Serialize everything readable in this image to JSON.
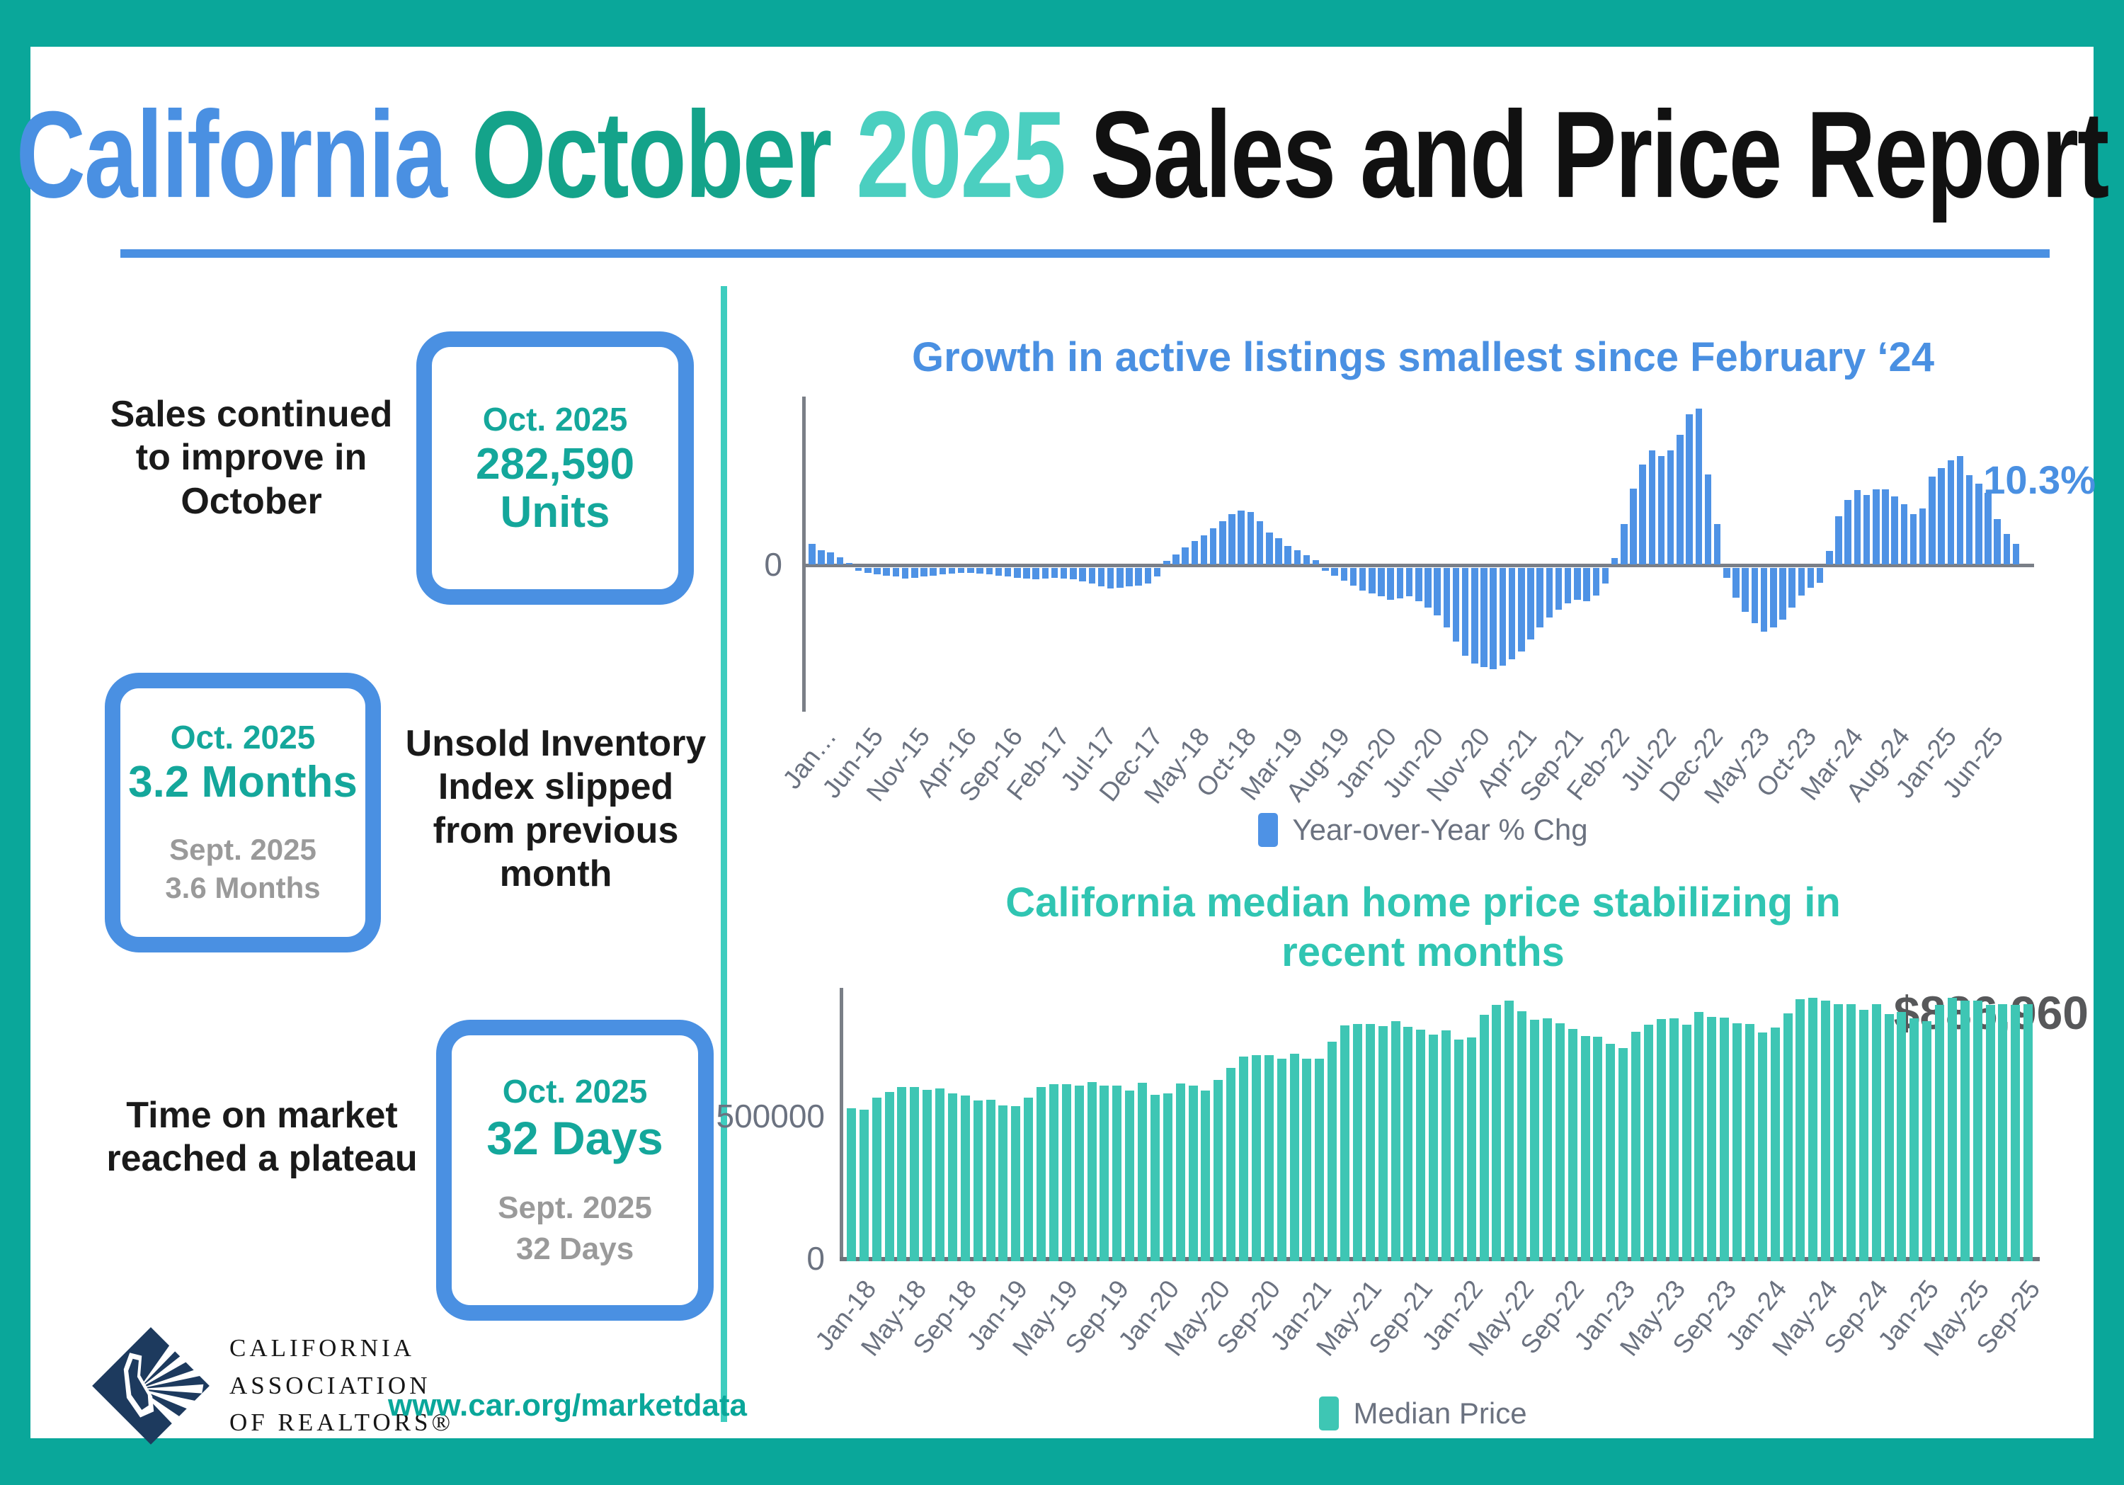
{
  "header": {
    "title_part1": "California",
    "title_part2": "October",
    "title_part3": "2025",
    "title_part4": "Sales and Price Report"
  },
  "stats": [
    {
      "label": "Sales continued to improve in October",
      "box": {
        "period": "Oct. 2025",
        "value": "282,590",
        "unit": "Units"
      }
    },
    {
      "label": "Unsold Inventory Index slipped from previous month",
      "box": {
        "period": "Oct. 2025",
        "value": "3.2 Months",
        "prev_period": "Sept. 2025",
        "prev_value": "3.6 Months"
      }
    },
    {
      "label": "Time on market reached a plateau",
      "box": {
        "period": "Oct. 2025",
        "value": "32 Days",
        "prev_period": "Sept. 2025",
        "prev_value": "32 Days"
      }
    }
  ],
  "footer": {
    "logo_line1": "CALIFORNIA",
    "logo_line2": "ASSOCIATION",
    "logo_line3": "OF REALTORS®",
    "url": "www.car.org/marketdata"
  },
  "colors": {
    "frame_teal": "#0aa79a",
    "divider_teal": "#3ecdbf",
    "accent_blue": "#4a90e2",
    "bar_blue": "#4e92e5",
    "bar_teal": "#3ec6b4",
    "stat_teal": "#14a79b",
    "stat_gray": "#9a9a9a",
    "logo_navy": "#1d3a5e"
  },
  "chart_data": [
    {
      "type": "bar",
      "title": "Growth in active listings smallest since February ‘24",
      "legend": "Year-over-Year % Chg",
      "ylabel": "Year-over-Year % Chg",
      "y_zero_label": "0",
      "annotation": "10.3%",
      "ylim": [
        -74,
        84
      ],
      "grid": false,
      "legend_position": "bottom",
      "bar_color": "#4e92e5",
      "x_start": "Jan-2015",
      "x_end": "Oct-2025",
      "tick_every_n_months": 5,
      "tick_labels": [
        "Jan…",
        "Jun-15",
        "Nov-15",
        "Apr-16",
        "Sep-16",
        "Feb-17",
        "Jul-17",
        "Dec-17",
        "May-18",
        "Oct-18",
        "Mar-19",
        "Aug-19",
        "Jan-20",
        "Jun-20",
        "Nov-20",
        "Apr-21",
        "Sep-21",
        "Feb-22",
        "Jul-22",
        "Dec-22",
        "May-23",
        "Oct-23",
        "Mar-24",
        "Aug-24",
        "Jan-25",
        "Jun-25"
      ],
      "values": [
        10,
        7,
        6,
        3.5,
        0.5,
        -1.5,
        -2.5,
        -3.5,
        -4,
        -4.5,
        -5.5,
        -5,
        -4.5,
        -4,
        -3.5,
        -3,
        -2.5,
        -2.5,
        -3,
        -3.5,
        -4,
        -4.5,
        -5,
        -5.5,
        -6,
        -5.5,
        -5,
        -5.5,
        -6,
        -7,
        -8,
        -9.5,
        -10.5,
        -10,
        -9.5,
        -9,
        -8,
        -4.5,
        1.5,
        5,
        8.5,
        11.5,
        14.5,
        18,
        21.5,
        25,
        27,
        26,
        21.5,
        16,
        13,
        9,
        7,
        4.5,
        2,
        -1.5,
        -4,
        -6.5,
        -9,
        -11.5,
        -13,
        -14.5,
        -16,
        -15.5,
        -14.5,
        -17,
        -20,
        -24,
        -30,
        -37,
        -44,
        -48,
        -50,
        -51,
        -49,
        -46,
        -42,
        -36,
        -30,
        -25,
        -21,
        -18,
        -16,
        -17,
        -14,
        -8,
        3,
        20,
        38,
        50,
        57,
        54,
        57,
        65,
        75,
        78,
        45,
        20,
        -5,
        -15,
        -22,
        -28,
        -32,
        -30,
        -26,
        -20,
        -14,
        -10,
        -7.5,
        6.7,
        24,
        32,
        37,
        34.5,
        37.5,
        37.5,
        34,
        30,
        25,
        28,
        44,
        48,
        52,
        54,
        44.5,
        40.5,
        35.7,
        22.7,
        15,
        10.3
      ]
    },
    {
      "type": "bar",
      "title": "California median home price stabilizing in recent months",
      "legend": "Median Price",
      "ylabel": "Median Price ($)",
      "y_ticks": [
        "500000",
        "0"
      ],
      "annotation": "$886,960",
      "ylim": [
        0,
        943000
      ],
      "grid": false,
      "legend_position": "bottom",
      "bar_color": "#3ec6b4",
      "x_start": "Jan-2018",
      "x_end": "Oct-2025",
      "tick_every_n_months": 4,
      "tick_labels": [
        "Jan-18",
        "May-18",
        "Sep-18",
        "Jan-19",
        "May-19",
        "Sep-19",
        "Jan-20",
        "May-20",
        "Sep-20",
        "Jan-21",
        "May-21",
        "Sep-21",
        "Jan-22",
        "May-22",
        "Sep-22",
        "Jan-23",
        "May-23",
        "Sep-23",
        "Jan-24",
        "May-24",
        "Sep-24",
        "Jan-25",
        "May-25",
        "Sep-25"
      ],
      "values": [
        528000,
        522000,
        564000,
        584000,
        600000,
        602000,
        591000,
        596000,
        578000,
        572000,
        554000,
        557000,
        538000,
        534000,
        565000,
        602000,
        611000,
        611000,
        607000,
        617000,
        605000,
        605000,
        589000,
        615000,
        575000,
        578000,
        612000,
        606000,
        588000,
        626000,
        666000,
        706000,
        712000,
        711000,
        699000,
        717000,
        699000,
        699000,
        758000,
        813000,
        818000,
        819000,
        811000,
        827000,
        808000,
        798000,
        782000,
        796000,
        765000,
        771000,
        849000,
        884000,
        898000,
        863000,
        833000,
        839000,
        821000,
        801000,
        777000,
        774000,
        751000,
        735000,
        791000,
        815000,
        836000,
        838000,
        816000,
        859000,
        843000,
        840000,
        822000,
        819000,
        788000,
        806000,
        854000,
        904000,
        908000,
        900000,
        886000,
        888000,
        868000,
        886000,
        852000,
        861000,
        838000,
        829000,
        884000,
        910000,
        900000,
        899000,
        884000,
        888000,
        884000,
        886960
      ]
    }
  ]
}
